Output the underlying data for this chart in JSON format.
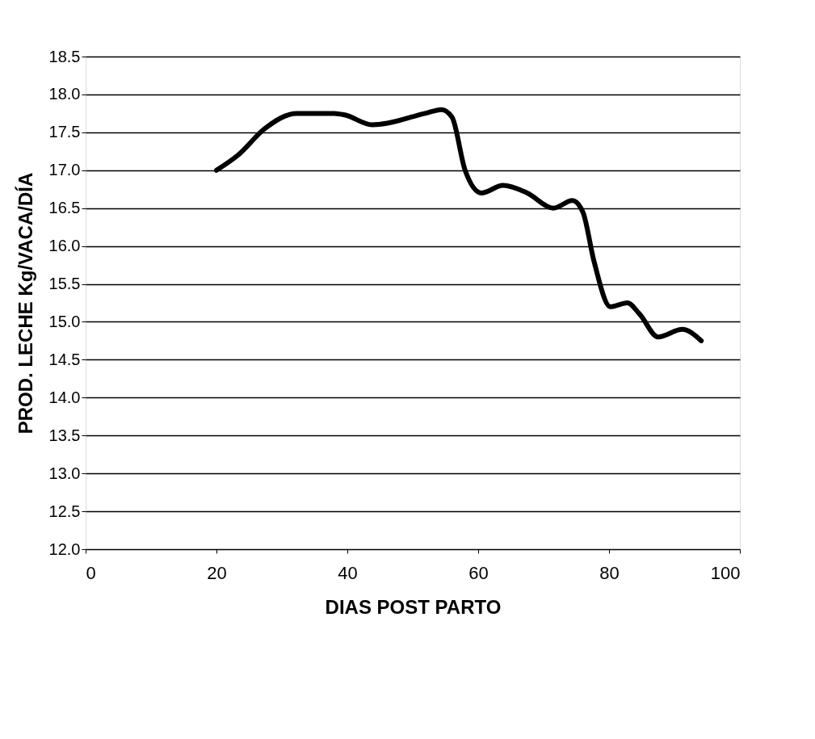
{
  "chart_data": {
    "type": "line",
    "xlabel": "DIAS POST PARTO",
    "ylabel": "PROD. LECHE Kg/VACA/DÍA",
    "x": [
      20,
      23.3,
      27.4,
      32.3,
      38,
      39.6,
      43.8,
      51.9,
      54.4,
      56,
      58,
      60.5,
      63.8,
      67.5,
      71.5,
      74.4,
      76,
      77.7,
      80.2,
      82.8,
      84.7,
      87.5,
      91.2,
      94.1
    ],
    "series": [
      {
        "color": "#000000",
        "values": [
          17.0,
          17.2,
          17.55,
          17.75,
          17.75,
          17.73,
          17.6,
          17.75,
          17.8,
          17.7,
          17.0,
          16.7,
          16.8,
          16.7,
          16.5,
          16.6,
          16.45,
          15.8,
          15.2,
          15.25,
          15.1,
          14.8,
          14.9,
          14.75
        ]
      }
    ],
    "xlim": [
      0,
      100
    ],
    "xticks": [
      0,
      20,
      40,
      60,
      80,
      100
    ],
    "ylim": [
      12.0,
      18.5
    ],
    "yticks": [
      {
        "value": 12,
        "label": "12.0"
      },
      {
        "value": 12.5,
        "label": "12.5"
      },
      {
        "value": 13,
        "label": "13.0"
      },
      {
        "value": 13.5,
        "label": "13.5"
      },
      {
        "value": 14,
        "label": "14.0"
      },
      {
        "value": 14.5,
        "label": "14.5"
      },
      {
        "value": 15,
        "label": "15.0"
      },
      {
        "value": 15.5,
        "label": "15.5"
      },
      {
        "value": 16,
        "label": "16.0"
      },
      {
        "value": 16.5,
        "label": "16.5"
      },
      {
        "value": 17,
        "label": "17.0"
      },
      {
        "value": 17.5,
        "label": "17.5"
      },
      {
        "value": 18,
        "label": "18.0"
      },
      {
        "value": 18.5,
        "label": "18.5"
      }
    ],
    "grid": "y",
    "legend": false,
    "marker": "none",
    "line_style": "solid"
  }
}
